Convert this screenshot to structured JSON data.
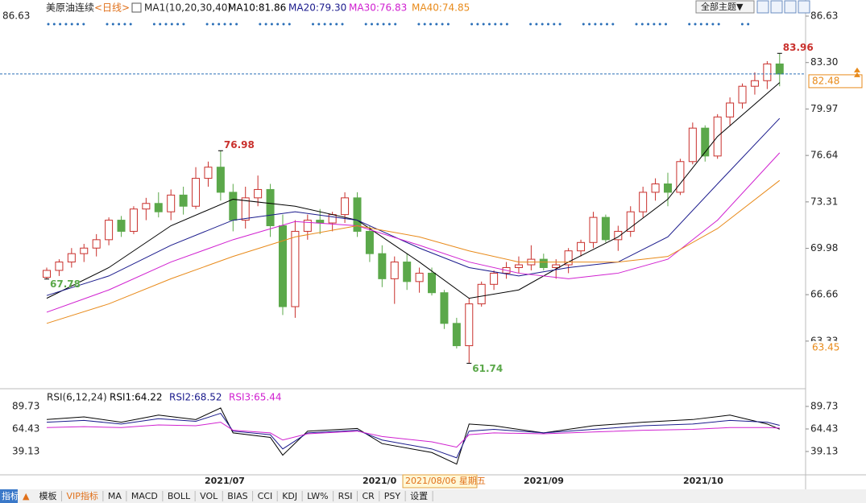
{
  "chart_data": {
    "type": "candlestick",
    "instrument": "美原油连续",
    "period": "<日线>",
    "ma_title": "MA1(10,20,30,40)",
    "ylim": [
      60.09,
      86.63
    ],
    "yticks": [
      {
        "value": 86.63,
        "label": "86.63"
      },
      {
        "value": 83.3,
        "label": "83.30"
      },
      79.97,
      76.64,
      73.31,
      69.98,
      66.66,
      63.33
    ],
    "last_price": 82.48,
    "low_marker": 63.45,
    "annotations": [
      83.96,
      76.98,
      67.78,
      61.74
    ],
    "up_color": "#c9302c",
    "down_color": "#5ba84a",
    "candles": [
      [
        67.9,
        68.6,
        67.78,
        68.4
      ],
      [
        68.4,
        69.2,
        68.0,
        69.0
      ],
      [
        69.0,
        70.0,
        68.6,
        69.6
      ],
      [
        69.6,
        70.3,
        69.0,
        70.0
      ],
      [
        70.0,
        71.0,
        69.4,
        70.6
      ],
      [
        70.6,
        72.2,
        70.2,
        72.0
      ],
      [
        72.0,
        72.3,
        70.8,
        71.2
      ],
      [
        71.2,
        73.0,
        71.0,
        72.8
      ],
      [
        72.8,
        73.6,
        72.0,
        73.2
      ],
      [
        73.2,
        74.0,
        72.2,
        72.6
      ],
      [
        72.6,
        74.2,
        72.0,
        73.8
      ],
      [
        73.8,
        74.4,
        72.4,
        73.0
      ],
      [
        73.0,
        75.8,
        72.8,
        75.0
      ],
      [
        75.0,
        76.2,
        74.4,
        75.8
      ],
      [
        75.8,
        76.98,
        73.4,
        74.0
      ],
      [
        74.0,
        74.6,
        71.2,
        72.0
      ],
      [
        72.0,
        74.4,
        71.4,
        73.6
      ],
      [
        73.6,
        75.2,
        73.0,
        74.2
      ],
      [
        74.2,
        74.6,
        70.8,
        71.6
      ],
      [
        71.6,
        72.4,
        65.2,
        65.8
      ],
      [
        65.8,
        72.0,
        65.0,
        71.2
      ],
      [
        71.2,
        72.4,
        70.6,
        72.0
      ],
      [
        72.0,
        72.8,
        71.0,
        71.8
      ],
      [
        71.8,
        72.6,
        71.2,
        72.4
      ],
      [
        72.4,
        74.0,
        71.8,
        73.6
      ],
      [
        73.6,
        74.0,
        70.8,
        71.2
      ],
      [
        71.2,
        71.6,
        69.0,
        69.6
      ],
      [
        69.6,
        70.2,
        67.2,
        67.8
      ],
      [
        67.8,
        69.4,
        66.0,
        69.0
      ],
      [
        69.0,
        69.6,
        67.0,
        67.6
      ],
      [
        67.6,
        68.6,
        66.8,
        68.2
      ],
      [
        68.2,
        68.6,
        66.6,
        66.8
      ],
      [
        66.8,
        67.0,
        64.2,
        64.6
      ],
      [
        64.6,
        65.0,
        62.8,
        63.0
      ],
      [
        63.0,
        66.4,
        61.74,
        66.0
      ],
      [
        66.0,
        67.6,
        65.8,
        67.4
      ],
      [
        67.4,
        68.4,
        67.0,
        68.2
      ],
      [
        68.2,
        69.0,
        67.8,
        68.6
      ],
      [
        68.6,
        69.4,
        68.2,
        68.8
      ],
      [
        68.8,
        70.2,
        68.4,
        69.2
      ],
      [
        69.2,
        69.6,
        68.4,
        68.6
      ],
      [
        68.6,
        69.2,
        67.8,
        68.8
      ],
      [
        68.8,
        70.0,
        68.2,
        69.8
      ],
      [
        69.8,
        70.6,
        69.4,
        70.4
      ],
      [
        70.4,
        72.6,
        70.0,
        72.2
      ],
      [
        72.2,
        72.4,
        70.4,
        70.6
      ],
      [
        70.6,
        71.6,
        69.8,
        71.2
      ],
      [
        71.2,
        73.0,
        70.8,
        72.6
      ],
      [
        72.6,
        74.4,
        72.2,
        74.0
      ],
      [
        74.0,
        75.0,
        73.4,
        74.6
      ],
      [
        74.6,
        75.4,
        73.0,
        74.0
      ],
      [
        74.0,
        76.4,
        73.8,
        76.2
      ],
      [
        76.2,
        79.0,
        76.0,
        78.6
      ],
      [
        78.6,
        78.8,
        76.2,
        76.6
      ],
      [
        76.6,
        79.6,
        76.4,
        79.4
      ],
      [
        79.4,
        80.8,
        78.8,
        80.4
      ],
      [
        80.4,
        81.8,
        80.0,
        81.6
      ],
      [
        81.6,
        82.6,
        81.0,
        82.0
      ],
      [
        82.0,
        83.4,
        81.4,
        83.2
      ],
      [
        83.2,
        83.96,
        81.6,
        82.48
      ]
    ],
    "ma_x": [
      0,
      5,
      10,
      15,
      20,
      25,
      30,
      34,
      38,
      42,
      46,
      50,
      54,
      59
    ],
    "series": [
      {
        "name": "MA10:81.86",
        "color": "#000000",
        "values": [
          66.4,
          68.6,
          71.6,
          73.5,
          73.0,
          72.0,
          69.0,
          66.4,
          67.0,
          69.0,
          70.8,
          73.5,
          78.0,
          81.86
        ]
      },
      {
        "name": "MA20:79.30",
        "color": "#1a1a8c",
        "values": [
          66.6,
          68.0,
          70.2,
          72.0,
          72.6,
          72.0,
          70.0,
          68.6,
          68.0,
          68.6,
          69.0,
          70.8,
          74.6,
          79.3
        ]
      },
      {
        "name": "MA30:76.83",
        "color": "#d020d0",
        "values": [
          65.4,
          67.0,
          69.0,
          70.6,
          71.9,
          71.6,
          70.2,
          69.0,
          68.2,
          67.8,
          68.2,
          69.2,
          72.0,
          76.83
        ]
      },
      {
        "name": "MA40:74.85",
        "color": "#e88a1a",
        "values": [
          64.6,
          66.0,
          67.8,
          69.4,
          70.8,
          71.6,
          70.8,
          69.8,
          69.0,
          69.0,
          69.0,
          69.4,
          71.4,
          74.85
        ]
      }
    ],
    "rsi": {
      "title": "RSI(6,12,24)",
      "ylim": [
        12.93,
        105.1
      ],
      "yticks": [
        89.73,
        64.43,
        39.13
      ],
      "x": [
        0,
        3,
        6,
        9,
        12,
        14,
        15,
        18,
        19,
        21,
        25,
        27,
        31,
        33,
        34,
        36,
        40,
        44,
        48,
        52,
        55,
        58,
        59
      ],
      "series": [
        {
          "name": "RSI1:64.22",
          "color": "#000000",
          "values": [
            75,
            78,
            72,
            80,
            75,
            88,
            60,
            55,
            35,
            62,
            65,
            48,
            38,
            25,
            70,
            68,
            60,
            68,
            72,
            75,
            80,
            70,
            64.22
          ]
        },
        {
          "name": "RSI2:68.52",
          "color": "#1a1a8c",
          "values": [
            72,
            74,
            70,
            76,
            73,
            82,
            62,
            58,
            42,
            60,
            63,
            52,
            42,
            32,
            62,
            64,
            60,
            64,
            68,
            70,
            74,
            72,
            68.52
          ]
        },
        {
          "name": "RSI3:65.44",
          "color": "#d020d0",
          "values": [
            66,
            67,
            66,
            69,
            68,
            72,
            63,
            60,
            52,
            59,
            62,
            56,
            50,
            44,
            58,
            60,
            59,
            61,
            63,
            64,
            66,
            66,
            65.44
          ]
        }
      ]
    },
    "x_axis_labels": [
      "2021/07",
      "2021/0",
      "2021/09",
      "2021/10"
    ],
    "crosshair_label": "2021/08/06 星期五"
  },
  "toolbar": {
    "theme_button": "全部主题▼"
  },
  "tabs": [
    "指标",
    "▲",
    "模板",
    "VIP指标",
    "MA",
    "MACD",
    "BOLL",
    "VOL",
    "BIAS",
    "CCI",
    "KDJ",
    "LW%",
    "RSI",
    "CR",
    "PSY",
    "设置"
  ]
}
